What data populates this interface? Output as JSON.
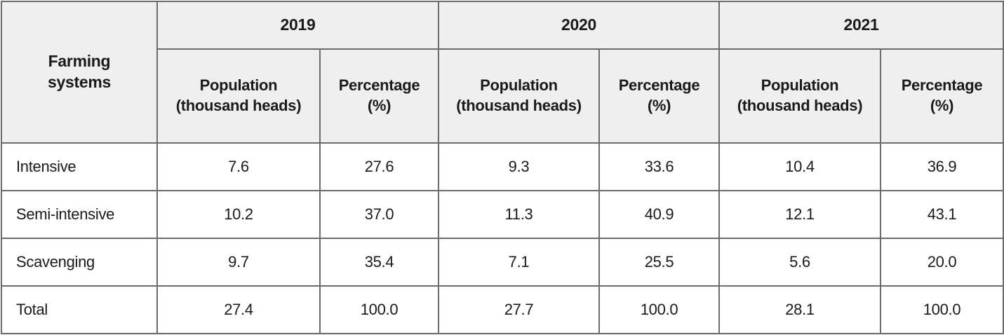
{
  "table": {
    "corner_header": [
      "Farming",
      "systems"
    ],
    "years": [
      "2019",
      "2020",
      "2021"
    ],
    "subheaders": {
      "population": [
        "Population",
        "(thousand heads)"
      ],
      "percentage": [
        "Percentage",
        "(%)"
      ]
    },
    "rows": [
      {
        "label": "Intensive",
        "values": [
          "7.6",
          "27.6",
          "9.3",
          "33.6",
          "10.4",
          "36.9"
        ]
      },
      {
        "label": "Semi-intensive",
        "values": [
          "10.2",
          "37.0",
          "11.3",
          "40.9",
          "12.1",
          "43.1"
        ]
      },
      {
        "label": "Scavenging",
        "values": [
          "9.7",
          "35.4",
          "7.1",
          "25.5",
          "5.6",
          "20.0"
        ]
      },
      {
        "label": "Total",
        "values": [
          "27.4",
          "100.0",
          "27.7",
          "100.0",
          "28.1",
          "100.0"
        ]
      }
    ]
  },
  "colors": {
    "header_bg": "#efefef",
    "border": "#6b6b6b",
    "text": "#1a1a1a"
  }
}
